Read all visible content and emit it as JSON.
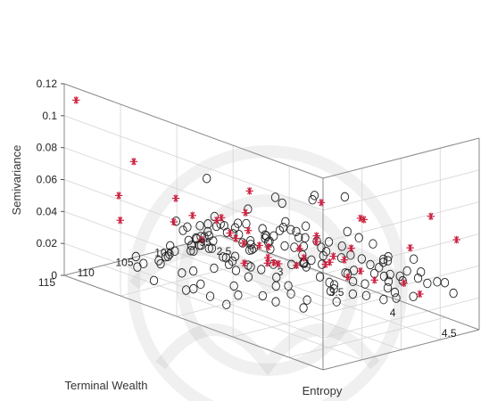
{
  "chart_data": {
    "type": "scatter3d",
    "title": "",
    "xlabel": "Terminal Wealth",
    "ylabel": "Entropy",
    "zlabel": "Semivariance",
    "xlim": [
      95,
      115
    ],
    "ylim": [
      2.5,
      4.8
    ],
    "zlim": [
      0,
      0.12
    ],
    "xticks": [
      "95",
      "100",
      "105",
      "110",
      "115"
    ],
    "yticks": [
      "2.5",
      "3",
      "3.5",
      "4",
      "4.5"
    ],
    "zticks": [
      "0",
      "0.02",
      "0.04",
      "0.06",
      "0.08",
      "0.1",
      "0.12"
    ],
    "grid": true,
    "colors": {
      "circle": "#222222",
      "star": "#cc1f3f"
    },
    "series": [
      {
        "marker": "circle",
        "points": [
          [
            112.6,
            3.6,
            0.086
          ],
          [
            112.2,
            3.3,
            0.051
          ],
          [
            111.0,
            3.4,
            0.041
          ],
          [
            109.8,
            3.55,
            0.032
          ],
          [
            108.5,
            3.25,
            0.03
          ],
          [
            107.0,
            3.0,
            0.031
          ],
          [
            106.5,
            3.3,
            0.042
          ],
          [
            105.0,
            2.9,
            0.028
          ],
          [
            103.0,
            3.3,
            0.047
          ],
          [
            101.5,
            3.5,
            0.054
          ],
          [
            100.5,
            3.7,
            0.06
          ],
          [
            99.5,
            3.3,
            0.05
          ],
          [
            98.8,
            3.6,
            0.058
          ],
          [
            97.8,
            3.8,
            0.061
          ],
          [
            101.8,
            4.1,
            0.052
          ],
          [
            103.2,
            4.3,
            0.055
          ],
          [
            104.5,
            3.9,
            0.041
          ],
          [
            102.0,
            3.9,
            0.032
          ],
          [
            106.0,
            3.7,
            0.041
          ],
          [
            107.5,
            4.0,
            0.036
          ],
          [
            106.5,
            4.2,
            0.04
          ],
          [
            101.5,
            4.4,
            0.042
          ],
          [
            100.5,
            4.6,
            0.046
          ],
          [
            99.5,
            4.3,
            0.036
          ],
          [
            100.0,
            3.6,
            0.033
          ],
          [
            98.5,
            3.9,
            0.028
          ],
          [
            97.2,
            4.1,
            0.027
          ],
          [
            98.5,
            4.5,
            0.029
          ],
          [
            102.0,
            4.7,
            0.027
          ],
          [
            101.3,
            4.5,
            0.02
          ],
          [
            105.8,
            3.3,
            0.02
          ],
          [
            104.8,
            3.45,
            0.017
          ],
          [
            102.5,
            3.3,
            0.021
          ],
          [
            101.2,
            3.2,
            0.02
          ],
          [
            100.8,
            3.3,
            0.028
          ],
          [
            99.8,
            3.1,
            0.018
          ],
          [
            98.7,
            3.2,
            0.014
          ],
          [
            98.5,
            3.4,
            0.02
          ],
          [
            99.2,
            3.6,
            0.018
          ],
          [
            97.3,
            3.6,
            0.021
          ],
          [
            96.5,
            3.5,
            0.02
          ],
          [
            96.0,
            3.65,
            0.024
          ],
          [
            96.1,
            3.25,
            0.023
          ],
          [
            96.8,
            3.7,
            0.019
          ],
          [
            97.3,
            3.4,
            0.009
          ],
          [
            98.3,
            3.2,
            0.004
          ],
          [
            97.2,
            3.05,
            0.015
          ],
          [
            96.3,
            3.0,
            0.014
          ],
          [
            95.8,
            3.3,
            0.004
          ],
          [
            96.9,
            4.0,
            0.017
          ],
          [
            96.3,
            4.0,
            0.02
          ],
          [
            95.8,
            4.05,
            0.012
          ],
          [
            96.5,
            4.2,
            0.02
          ],
          [
            97.6,
            4.3,
            0.021
          ],
          [
            98.6,
            4.3,
            0.015
          ],
          [
            99.5,
            4.3,
            0.019
          ],
          [
            98.1,
            4.0,
            0.012
          ],
          [
            98.6,
            4.2,
            0.008
          ],
          [
            100.6,
            3.9,
            0.012
          ],
          [
            101.1,
            4.1,
            0.012
          ],
          [
            101.3,
            3.7,
            0.019
          ],
          [
            100.6,
            4.0,
            0.022
          ],
          [
            102.5,
            4.0,
            0.013
          ],
          [
            103.6,
            3.7,
            0.01
          ],
          [
            104.7,
            3.8,
            0.009
          ],
          [
            105.2,
            3.7,
            0.002
          ],
          [
            104.9,
            3.55,
            0.018
          ],
          [
            103.7,
            3.4,
            0.026
          ],
          [
            103.3,
            3.55,
            0.037
          ],
          [
            101.9,
            3.55,
            0.029
          ],
          [
            102.4,
            3.75,
            0.024
          ],
          [
            100.4,
            3.5,
            0.036
          ],
          [
            99.2,
            3.55,
            0.038
          ],
          [
            98.4,
            3.7,
            0.031
          ],
          [
            97.8,
            4.05,
            0.038
          ],
          [
            99.2,
            4.3,
            0.027
          ],
          [
            100.3,
            4.2,
            0.032
          ],
          [
            101.4,
            4.2,
            0.037
          ],
          [
            102.4,
            4.2,
            0.031
          ],
          [
            103.2,
            4.2,
            0.03
          ],
          [
            103.7,
            4.4,
            0.022
          ],
          [
            104.1,
            4.1,
            0.023
          ],
          [
            105.3,
            4.1,
            0.028
          ],
          [
            105.4,
            3.95,
            0.038
          ],
          [
            104.7,
            3.7,
            0.046
          ],
          [
            103.7,
            3.8,
            0.043
          ],
          [
            102.8,
            3.6,
            0.043
          ],
          [
            102.1,
            3.85,
            0.04
          ],
          [
            101.8,
            3.55,
            0.044
          ],
          [
            106.4,
            3.55,
            0.032
          ],
          [
            107.3,
            3.6,
            0.025
          ],
          [
            108.7,
            3.7,
            0.022
          ],
          [
            109.3,
            3.6,
            0.03
          ],
          [
            110.3,
            3.7,
            0.028
          ],
          [
            111.2,
            3.7,
            0.033
          ],
          [
            110.5,
            3.5,
            0.037
          ],
          [
            108.9,
            3.4,
            0.037
          ],
          [
            107.6,
            3.2,
            0.033
          ],
          [
            106.8,
            3.45,
            0.026
          ],
          [
            105.8,
            3.15,
            0.03
          ],
          [
            104.6,
            3.2,
            0.036
          ],
          [
            103.8,
            3.0,
            0.031
          ],
          [
            102.8,
            3.1,
            0.027
          ],
          [
            102.0,
            2.95,
            0.026
          ],
          [
            100.8,
            2.85,
            0.028
          ],
          [
            101.3,
            3.05,
            0.023
          ],
          [
            100.8,
            3.1,
            0.018
          ],
          [
            100.4,
            3.3,
            0.023
          ],
          [
            99.7,
            3.2,
            0.028
          ],
          [
            99.6,
            2.95,
            0.022
          ],
          [
            98.9,
            3.0,
            0.025
          ],
          [
            98.4,
            2.9,
            0.015
          ],
          [
            97.8,
            2.85,
            0.02
          ],
          [
            99.5,
            2.7,
            0.013
          ],
          [
            100.5,
            2.7,
            0.018
          ],
          [
            101.0,
            2.7,
            0.011
          ],
          [
            101.5,
            2.85,
            0.009
          ],
          [
            102.1,
            2.85,
            0.017
          ],
          [
            103.4,
            2.8,
            0.015
          ],
          [
            104.2,
            2.9,
            0.012
          ],
          [
            105.4,
            3.05,
            0.021
          ],
          [
            106.0,
            3.0,
            0.017
          ],
          [
            107.2,
            2.9,
            0.019
          ],
          [
            108.0,
            2.95,
            0.016
          ],
          [
            108.8,
            3.2,
            0.029
          ],
          [
            109.5,
            3.45,
            0.022
          ],
          [
            110.0,
            3.3,
            0.017
          ],
          [
            110.5,
            3.4,
            0.012
          ],
          [
            111.3,
            3.1,
            0.018
          ],
          [
            112.1,
            3.2,
            0.026
          ],
          [
            112.9,
            3.4,
            0.022
          ],
          [
            113.8,
            3.5,
            0.015
          ],
          [
            113.6,
            3.2,
            0.013
          ],
          [
            111.4,
            2.9,
            0.011
          ],
          [
            109.9,
            2.85,
            0.01
          ],
          [
            108.7,
            2.7,
            0.009
          ],
          [
            106.5,
            2.75,
            0.005
          ],
          [
            104.6,
            2.7,
            0.004
          ],
          [
            103.0,
            2.65,
            0.004
          ],
          [
            100.2,
            4.7,
            0.033
          ],
          [
            99.4,
            4.8,
            0.035
          ],
          [
            98.3,
            4.8,
            0.027
          ],
          [
            97.5,
            4.6,
            0.028
          ],
          [
            96.7,
            4.4,
            0.028
          ],
          [
            98.0,
            4.2,
            0.034
          ],
          [
            102.8,
            4.7,
            0.044
          ],
          [
            104.3,
            4.6,
            0.04
          ],
          [
            105.4,
            4.4,
            0.033
          ],
          [
            106.4,
            4.3,
            0.027
          ],
          [
            107.5,
            4.4,
            0.023
          ],
          [
            108.4,
            4.2,
            0.02
          ],
          [
            108.0,
            3.9,
            0.026
          ],
          [
            109.5,
            4.0,
            0.025
          ],
          [
            110.3,
            4.3,
            0.02
          ],
          [
            111.2,
            4.0,
            0.021
          ],
          [
            112.0,
            3.8,
            0.023
          ],
          [
            112.9,
            3.9,
            0.021
          ],
          [
            113.6,
            3.7,
            0.016
          ],
          [
            114.3,
            3.6,
            0.019
          ],
          [
            114.4,
            3.9,
            0.017
          ]
        ]
      },
      {
        "marker": "star",
        "points": [
          [
            114.2,
            2.55,
            0.11
          ],
          [
            113.3,
            3.0,
            0.082
          ],
          [
            110.9,
            2.7,
            0.05
          ],
          [
            113.6,
            2.9,
            0.043
          ],
          [
            107.2,
            2.95,
            0.05
          ],
          [
            107.0,
            3.3,
            0.045
          ],
          [
            106.0,
            3.4,
            0.035
          ],
          [
            106.5,
            3.05,
            0.041
          ],
          [
            105.3,
            2.8,
            0.029
          ],
          [
            103.9,
            2.95,
            0.02
          ],
          [
            110.0,
            3.8,
            0.08
          ],
          [
            103.7,
            4.0,
            0.07
          ],
          [
            104.0,
            4.4,
            0.07
          ],
          [
            103.0,
            4.3,
            0.067
          ],
          [
            102.4,
            4.7,
            0.058
          ],
          [
            98.3,
            4.6,
            0.07
          ],
          [
            97.9,
            4.8,
            0.06
          ],
          [
            107.6,
            3.8,
            0.042
          ],
          [
            109.8,
            4.0,
            0.04
          ],
          [
            108.3,
            4.1,
            0.039
          ],
          [
            105.5,
            4.2,
            0.04
          ],
          [
            104.6,
            4.1,
            0.035
          ],
          [
            103.4,
            3.6,
            0.021
          ],
          [
            102.6,
            3.45,
            0.02
          ],
          [
            101.6,
            3.7,
            0.025
          ],
          [
            100.7,
            3.9,
            0.03
          ],
          [
            101.2,
            4.3,
            0.026
          ],
          [
            100.3,
            4.0,
            0.019
          ],
          [
            99.3,
            3.9,
            0.026
          ],
          [
            97.1,
            3.5,
            0.028
          ],
          [
            97.7,
            3.85,
            0.03
          ],
          [
            99.0,
            3.0,
            0.032
          ],
          [
            100.1,
            3.2,
            0.018
          ],
          [
            100.5,
            3.3,
            0.01
          ],
          [
            100.6,
            3.1,
            0.005
          ],
          [
            98.5,
            2.95,
            0.011
          ],
          [
            98.1,
            2.8,
            0.013
          ],
          [
            99.2,
            2.8,
            0.024
          ],
          [
            95.7,
            3.4,
            0.02
          ],
          [
            95.4,
            4.3,
            0.01
          ],
          [
            96.0,
            4.2,
            0.015
          ],
          [
            95.8,
            3.8,
            0.012
          ],
          [
            96.4,
            3.3,
            0.014
          ],
          [
            97.2,
            2.9,
            0.016
          ]
        ]
      }
    ]
  }
}
